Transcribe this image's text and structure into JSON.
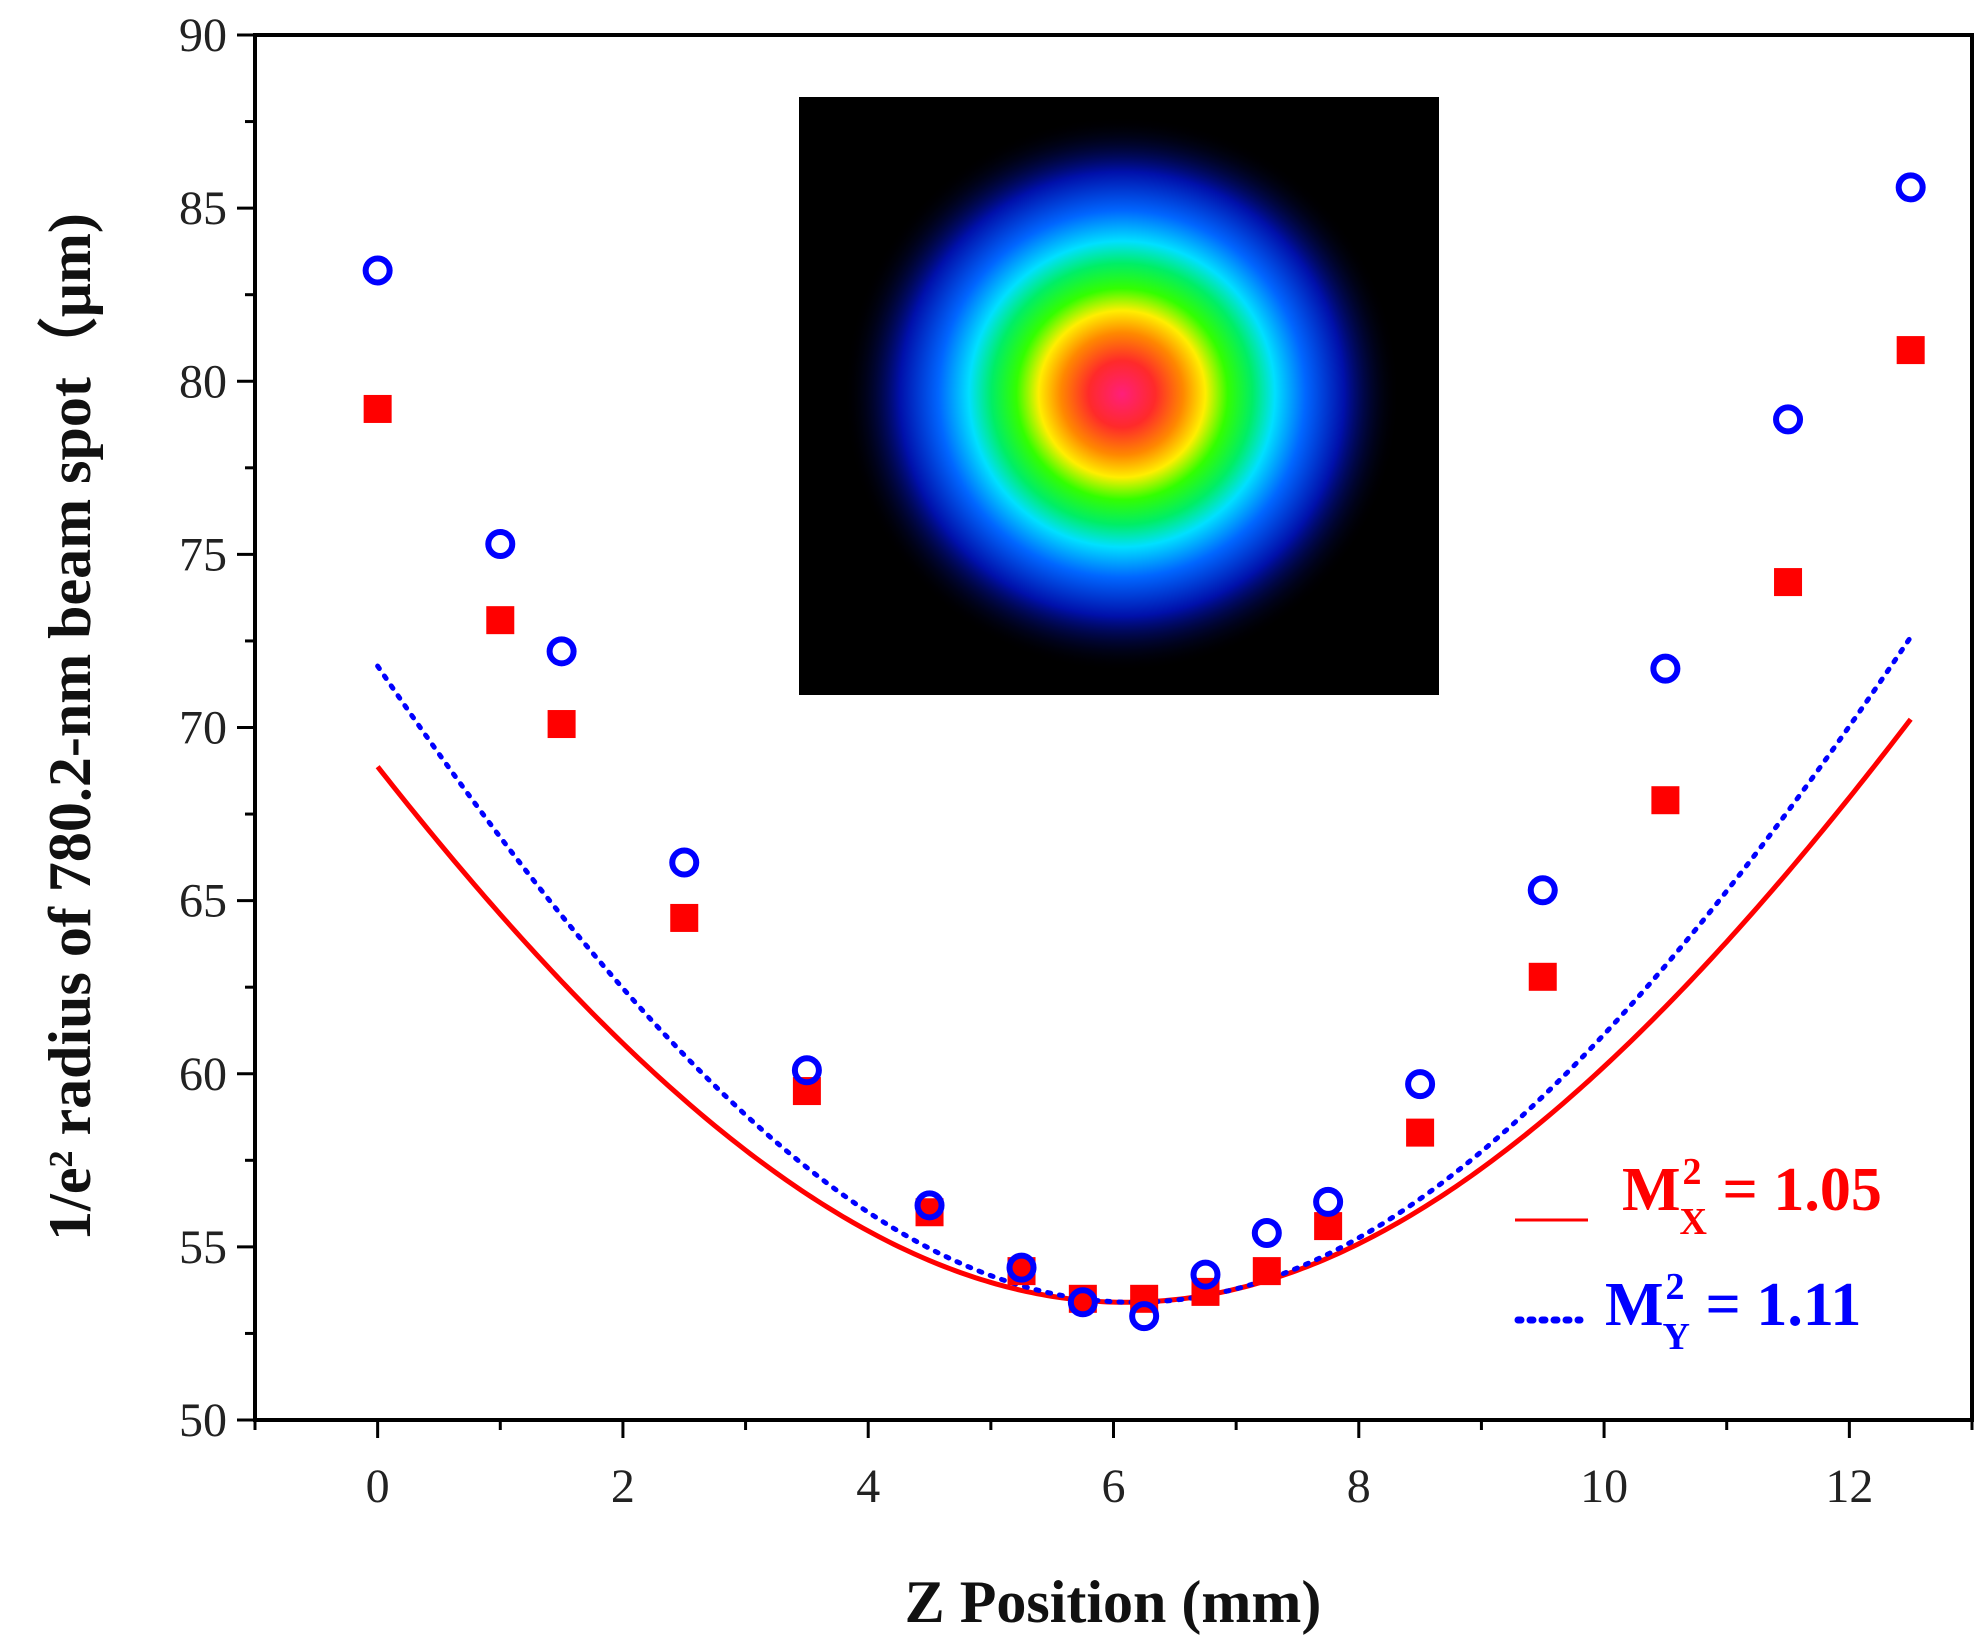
{
  "chart_data": {
    "type": "scatter",
    "title": "",
    "xlabel": "Z Position (mm)",
    "ylabel_prefix": "1/e",
    "ylabel_sup": "2",
    "ylabel_rest": " radius of 780.2-nm beam spot（μm)",
    "xlim": [
      -1,
      13
    ],
    "ylim": [
      50,
      90
    ],
    "xticks": [
      0,
      2,
      4,
      6,
      8,
      10,
      12
    ],
    "yticks": [
      50,
      55,
      60,
      65,
      70,
      75,
      80,
      85,
      90
    ],
    "grid": false,
    "legend_position": "bottom-right",
    "series": [
      {
        "key": "mx",
        "color": "#ff0000",
        "marker": "square",
        "line": "solid",
        "legend": {
          "prefix": "M",
          "sup": "2",
          "sub": "X",
          "value": " = 1.05"
        },
        "x": [
          0,
          1,
          1.5,
          2.5,
          3.5,
          4.5,
          5.25,
          5.75,
          6.25,
          6.75,
          7.25,
          7.75,
          8.5,
          9.5,
          10.5,
          11.5,
          12.5
        ],
        "y": [
          79.2,
          73.1,
          70.1,
          64.5,
          59.5,
          56.0,
          54.3,
          53.5,
          53.5,
          53.7,
          54.3,
          55.6,
          58.3,
          62.8,
          67.9,
          74.2,
          80.9
        ]
      },
      {
        "key": "my",
        "color": "#0000ff",
        "marker": "open-circle",
        "line": "dotted",
        "legend": {
          "prefix": "M",
          "sup": "2",
          "sub": "Y",
          "value": " = 1.11"
        },
        "x": [
          0,
          1,
          1.5,
          2.5,
          3.5,
          4.5,
          5.25,
          5.75,
          6.25,
          6.75,
          7.25,
          7.75,
          8.5,
          9.5,
          10.5,
          11.5,
          12.5
        ],
        "y": [
          83.2,
          75.3,
          72.2,
          66.1,
          60.1,
          56.2,
          54.4,
          53.4,
          53.0,
          54.2,
          55.4,
          56.3,
          59.7,
          65.3,
          71.7,
          78.9,
          85.6
        ]
      }
    ],
    "fits": [
      {
        "key": "mx",
        "z0": 6.1,
        "w0": 53.4,
        "zr": 7.49
      },
      {
        "key": "my",
        "z0": 6.17,
        "w0": 53.4,
        "zr": 6.87
      }
    ]
  }
}
